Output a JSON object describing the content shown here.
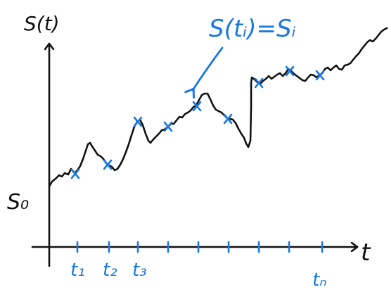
{
  "colors": {
    "ink": "#111111",
    "accent": "#1a78e0"
  },
  "axes": {
    "y_label": "S(t)",
    "x_label": "t"
  },
  "start_value_label": "S₀",
  "annotation": {
    "text": "S(tᵢ)=Sᵢ"
  },
  "tick_labels": {
    "t1": "t₁",
    "t2": "t₂",
    "t3": "t₃",
    "tn": "tₙ"
  },
  "sample_points": [
    {
      "name": "t1"
    },
    {
      "name": "t2"
    },
    {
      "name": "t3"
    },
    {
      "name": "t4"
    },
    {
      "name": "t5"
    },
    {
      "name": "t6"
    },
    {
      "name": "t7"
    },
    {
      "name": "t8"
    },
    {
      "name": "t9"
    },
    {
      "name": "tn"
    }
  ]
}
